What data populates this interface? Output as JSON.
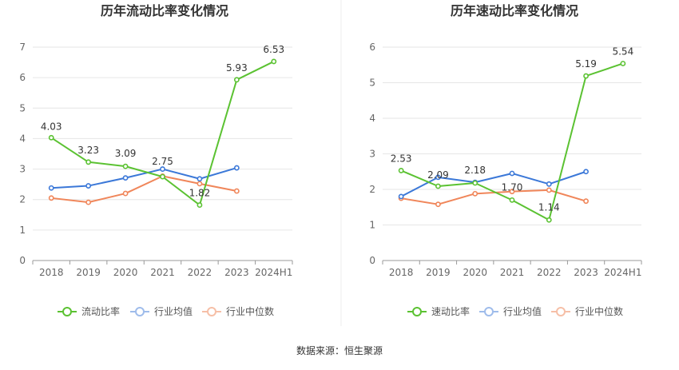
{
  "source": "数据来源：恒生聚源",
  "colors": {
    "main": "#5bc232",
    "avg": "#3b78d8",
    "median": "#f0865a",
    "grid": "#e6e6e6",
    "axis": "#999999",
    "divider": "#eeeeee"
  },
  "chart_data": [
    {
      "type": "line",
      "title": "历年流动比率变化情况",
      "categories": [
        "2018",
        "2019",
        "2020",
        "2021",
        "2022",
        "2023",
        "2024H1"
      ],
      "ylim": [
        0,
        7
      ],
      "yticks": [
        0,
        1,
        2,
        3,
        4,
        5,
        6,
        7
      ],
      "grid": true,
      "legend_position": "bottom",
      "series": [
        {
          "name": "流动比率",
          "color": "#5bc232",
          "labeled": true,
          "values": [
            4.03,
            3.23,
            3.09,
            2.75,
            1.82,
            5.93,
            6.53
          ],
          "labels": [
            "4.03",
            "3.23",
            "3.09",
            "2.75",
            "1.82",
            "5.93",
            "6.53"
          ]
        },
        {
          "name": "行业均值",
          "color": "#3b78d8",
          "labeled": false,
          "values": [
            2.38,
            2.45,
            2.71,
            3.0,
            2.68,
            3.04,
            null
          ]
        },
        {
          "name": "行业中位数",
          "color": "#f0865a",
          "labeled": false,
          "values": [
            2.05,
            1.91,
            2.2,
            2.77,
            2.52,
            2.28,
            null
          ]
        }
      ]
    },
    {
      "type": "line",
      "title": "历年速动比率变化情况",
      "categories": [
        "2018",
        "2019",
        "2020",
        "2021",
        "2022",
        "2023",
        "2024H1"
      ],
      "ylim": [
        0,
        6
      ],
      "yticks": [
        0,
        1,
        2,
        3,
        4,
        5,
        6
      ],
      "grid": true,
      "legend_position": "bottom",
      "series": [
        {
          "name": "速动比率",
          "color": "#5bc232",
          "labeled": true,
          "values": [
            2.53,
            2.09,
            2.18,
            1.7,
            1.14,
            5.19,
            5.54
          ],
          "labels": [
            "2.53",
            "2.09",
            "2.18",
            "1.70",
            "1.14",
            "5.19",
            "5.54"
          ]
        },
        {
          "name": "行业均值",
          "color": "#3b78d8",
          "labeled": false,
          "values": [
            1.8,
            2.34,
            2.2,
            2.45,
            2.15,
            2.5,
            null
          ]
        },
        {
          "name": "行业中位数",
          "color": "#f0865a",
          "labeled": false,
          "values": [
            1.75,
            1.58,
            1.88,
            1.94,
            1.98,
            1.67,
            null
          ]
        }
      ]
    }
  ]
}
